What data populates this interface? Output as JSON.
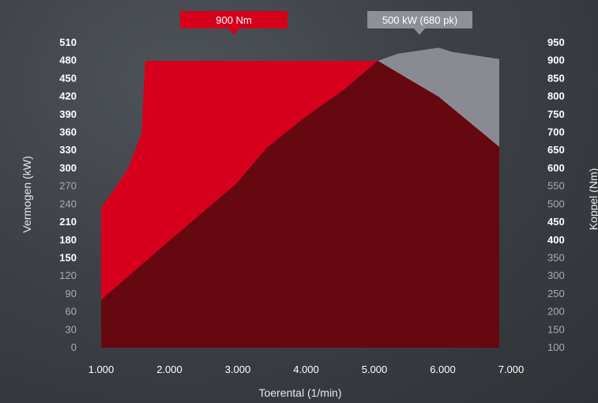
{
  "chart_data": {
    "type": "area",
    "xlabel": "Toerental (1/min)",
    "ylabel_left": "Vermogen (kW)",
    "ylabel_right": "Koppel (Nm)",
    "x_ticks": [
      "1.000",
      "2.000",
      "3.000",
      "4.000",
      "5.000",
      "6.000",
      "7.000"
    ],
    "x_range": [
      1000,
      6900
    ],
    "y_left_ticks": [
      "0",
      "30",
      "60",
      "90",
      "120",
      "150",
      "180",
      "210",
      "240",
      "270",
      "300",
      "330",
      "360",
      "390",
      "420",
      "450",
      "480",
      "510"
    ],
    "y_left_bold": [
      "150",
      "180",
      "210",
      "300",
      "330",
      "360",
      "390",
      "420",
      "450",
      "480",
      "510"
    ],
    "y_left_range": [
      0,
      480
    ],
    "y_right_ticks": [
      "100",
      "150",
      "200",
      "250",
      "300",
      "350",
      "400",
      "450",
      "500",
      "550",
      "600",
      "650",
      "700",
      "750",
      "800",
      "850",
      "900",
      "950"
    ],
    "y_right_bold": [
      "400",
      "450",
      "600",
      "650",
      "700",
      "750",
      "800",
      "850",
      "900",
      "950"
    ],
    "y_right_range": [
      100,
      900
    ],
    "callouts": [
      {
        "label": "900 Nm",
        "color": "#d6001c"
      },
      {
        "label": "500 kW (680 pk)",
        "color": "#8f9097"
      }
    ],
    "series": [
      {
        "axis": "right",
        "color": "#d6001c",
        "x": [
          1000,
          1150,
          1400,
          1600,
          1650,
          5100
        ],
        "y": [
          490,
          530,
          600,
          700,
          900,
          900
        ]
      },
      {
        "axis": "left",
        "color": "#8a8b92",
        "x": [
          5100,
          5400,
          6000,
          6200,
          6900
        ],
        "y": [
          480,
          492,
          502,
          495,
          483
        ]
      },
      {
        "axis": "left",
        "color": "#660810",
        "x": [
          1000,
          2000,
          3000,
          3450,
          4000,
          4600,
          5100,
          6000,
          6900
        ],
        "y": [
          80,
          178,
          274,
          334,
          384,
          432,
          480,
          420,
          336
        ]
      }
    ],
    "grid": false,
    "legend": "none"
  }
}
